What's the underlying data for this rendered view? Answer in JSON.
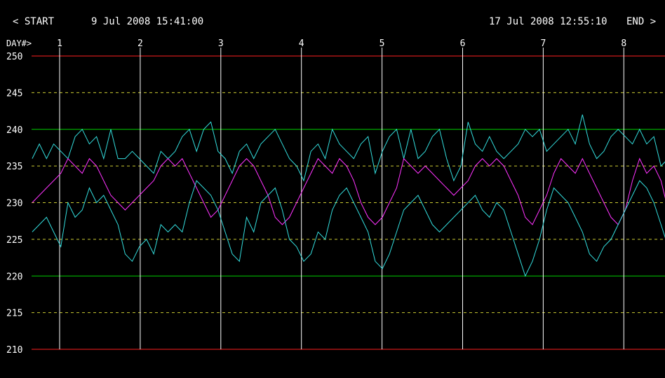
{
  "header": {
    "start_nav": "< START",
    "start_time": "9 Jul 2008 15:41:00",
    "end_time": "17 Jul 2008 12:55:10",
    "end_nav": "END >"
  },
  "chart_data": {
    "type": "line",
    "x_marker_label": "DAY#>",
    "day_markers": [
      1,
      2,
      3,
      4,
      5,
      6,
      7,
      8
    ],
    "ylim": [
      210,
      250
    ],
    "yticks": [
      250,
      245,
      240,
      235,
      230,
      225,
      220,
      215,
      210
    ],
    "limit_lines": [
      250,
      210
    ],
    "reference_lines": [
      240,
      220
    ],
    "dashed_lines": [
      245,
      235,
      230,
      225,
      215
    ],
    "colors": {
      "background": "#000000",
      "text": "#ffffff",
      "limit": "#ff2020",
      "reference": "#00cc00",
      "dashed": "#cccc33",
      "day_lines": "#ffffff",
      "max_series": "#33dddd",
      "avg_series": "#ff33ff",
      "min_series": "#33dddd"
    },
    "series_x_range_days": [
      0.66,
      8.55
    ],
    "series": [
      {
        "key": "max",
        "values": [
          236,
          238,
          236,
          238,
          237,
          236,
          239,
          240,
          238,
          239,
          236,
          240,
          236,
          236,
          237,
          236,
          235,
          234,
          237,
          236,
          237,
          239,
          240,
          237,
          240,
          241,
          237,
          236,
          234,
          237,
          238,
          236,
          238,
          239,
          240,
          238,
          236,
          235,
          233,
          237,
          238,
          236,
          240,
          238,
          237,
          236,
          238,
          239,
          234,
          237,
          239,
          240,
          236,
          240,
          236,
          237,
          239,
          240,
          236,
          233,
          235,
          241,
          238,
          237,
          239,
          237,
          236,
          237,
          238,
          240,
          239,
          240,
          237,
          238,
          239,
          240,
          238,
          242,
          238,
          236,
          237,
          239,
          240,
          239,
          238,
          240,
          238,
          239,
          235,
          236
        ],
        "color": "#33dddd"
      },
      {
        "key": "avg",
        "values": [
          230,
          231,
          232,
          233,
          234,
          236,
          235,
          234,
          236,
          235,
          233,
          231,
          230,
          229,
          230,
          231,
          232,
          233,
          235,
          236,
          235,
          236,
          234,
          232,
          230,
          228,
          229,
          231,
          233,
          235,
          236,
          235,
          233,
          231,
          228,
          227,
          228,
          230,
          232,
          234,
          236,
          235,
          234,
          236,
          235,
          233,
          230,
          228,
          227,
          228,
          230,
          232,
          236,
          235,
          234,
          235,
          234,
          233,
          232,
          231,
          232,
          233,
          235,
          236,
          235,
          236,
          235,
          233,
          231,
          228,
          227,
          229,
          231,
          234,
          236,
          235,
          234,
          236,
          234,
          232,
          230,
          228,
          227,
          229,
          233,
          236,
          234,
          235,
          233,
          229
        ],
        "color": "#ff33ff"
      },
      {
        "key": "min",
        "values": [
          226,
          227,
          228,
          226,
          224,
          230,
          228,
          229,
          232,
          230,
          231,
          229,
          227,
          223,
          222,
          224,
          225,
          223,
          227,
          226,
          227,
          226,
          230,
          233,
          232,
          231,
          229,
          226,
          223,
          222,
          228,
          226,
          230,
          231,
          232,
          229,
          225,
          224,
          222,
          223,
          226,
          225,
          229,
          231,
          232,
          230,
          228,
          226,
          222,
          221,
          223,
          226,
          229,
          230,
          231,
          229,
          227,
          226,
          227,
          228,
          229,
          230,
          231,
          229,
          228,
          230,
          229,
          226,
          223,
          220,
          222,
          225,
          229,
          232,
          231,
          230,
          228,
          226,
          223,
          222,
          224,
          225,
          227,
          229,
          231,
          233,
          232,
          230,
          227,
          224
        ],
        "color": "#33dddd"
      }
    ]
  }
}
